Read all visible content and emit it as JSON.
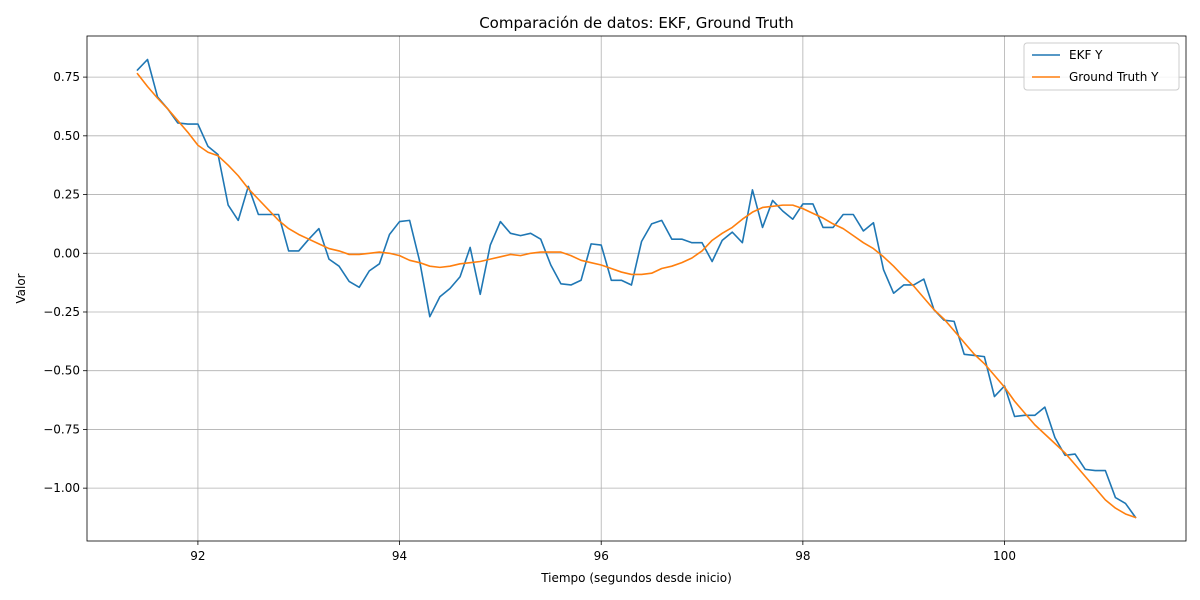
{
  "chart_data": {
    "type": "line",
    "title": "Comparación de datos: EKF, Ground Truth",
    "xlabel": "Tiempo (segundos desde inicio)",
    "ylabel": "Valor",
    "xlim": [
      90.9,
      101.8
    ],
    "ylim": [
      -1.225,
      0.925
    ],
    "xticks": [
      92,
      94,
      96,
      98,
      100
    ],
    "yticks": [
      -1.0,
      -0.75,
      -0.5,
      -0.25,
      0.0,
      0.25,
      0.5,
      0.75
    ],
    "ytick_labels": [
      "−1.00",
      "−0.75",
      "−0.50",
      "−0.25",
      "0.00",
      "0.25",
      "0.50",
      "0.75"
    ],
    "grid": true,
    "legend_position": "top-right",
    "series": [
      {
        "name": "EKF Y",
        "color": "#1f77b4",
        "x": [
          91.4,
          91.5,
          91.6,
          91.7,
          91.8,
          91.9,
          92.0,
          92.1,
          92.2,
          92.3,
          92.4,
          92.5,
          92.6,
          92.7,
          92.8,
          92.9,
          93.0,
          93.1,
          93.2,
          93.3,
          93.4,
          93.5,
          93.6,
          93.7,
          93.8,
          93.9,
          94.0,
          94.1,
          94.2,
          94.3,
          94.4,
          94.5,
          94.6,
          94.7,
          94.8,
          94.9,
          95.0,
          95.1,
          95.2,
          95.3,
          95.4,
          95.5,
          95.6,
          95.7,
          95.8,
          95.9,
          96.0,
          96.1,
          96.2,
          96.3,
          96.4,
          96.5,
          96.6,
          96.7,
          96.8,
          96.9,
          97.0,
          97.1,
          97.2,
          97.3,
          97.4,
          97.5,
          97.6,
          97.7,
          97.8,
          97.9,
          98.0,
          98.1,
          98.2,
          98.3,
          98.4,
          98.5,
          98.6,
          98.7,
          98.8,
          98.9,
          99.0,
          99.1,
          99.2,
          99.3,
          99.4,
          99.5,
          99.6,
          99.7,
          99.8,
          99.9,
          100.0,
          100.1,
          100.2,
          100.3,
          100.4,
          100.5,
          100.6,
          100.7,
          100.8,
          100.9,
          101.0,
          101.1,
          101.2,
          101.3
        ],
        "y": [
          0.78,
          0.825,
          0.665,
          0.615,
          0.555,
          0.55,
          0.55,
          0.455,
          0.42,
          0.205,
          0.14,
          0.285,
          0.165,
          0.165,
          0.165,
          0.01,
          0.01,
          0.06,
          0.105,
          -0.025,
          -0.055,
          -0.12,
          -0.145,
          -0.075,
          -0.045,
          0.08,
          0.135,
          0.14,
          -0.035,
          -0.27,
          -0.185,
          -0.15,
          -0.1,
          0.025,
          -0.175,
          0.035,
          0.135,
          0.085,
          0.075,
          0.085,
          0.06,
          -0.05,
          -0.13,
          -0.135,
          -0.115,
          0.04,
          0.035,
          -0.115,
          -0.115,
          -0.135,
          0.05,
          0.125,
          0.14,
          0.06,
          0.06,
          0.045,
          0.045,
          -0.035,
          0.055,
          0.09,
          0.045,
          0.27,
          0.11,
          0.225,
          0.18,
          0.145,
          0.21,
          0.21,
          0.11,
          0.11,
          0.165,
          0.165,
          0.095,
          0.13,
          -0.07,
          -0.17,
          -0.135,
          -0.135,
          -0.11,
          -0.24,
          -0.285,
          -0.29,
          -0.43,
          -0.435,
          -0.44,
          -0.61,
          -0.565,
          -0.695,
          -0.69,
          -0.69,
          -0.655,
          -0.785,
          -0.86,
          -0.855,
          -0.92,
          -0.925,
          -0.925,
          -1.04,
          -1.065,
          -1.125
        ]
      },
      {
        "name": "Ground Truth Y",
        "color": "#ff7f0e",
        "x": [
          91.4,
          91.5,
          91.6,
          91.7,
          91.8,
          91.9,
          92.0,
          92.1,
          92.2,
          92.3,
          92.4,
          92.5,
          92.6,
          92.7,
          92.8,
          92.9,
          93.0,
          93.1,
          93.2,
          93.3,
          93.4,
          93.5,
          93.6,
          93.7,
          93.8,
          93.9,
          94.0,
          94.1,
          94.2,
          94.3,
          94.4,
          94.5,
          94.6,
          94.7,
          94.8,
          94.9,
          95.0,
          95.1,
          95.2,
          95.3,
          95.4,
          95.5,
          95.6,
          95.7,
          95.8,
          95.9,
          96.0,
          96.1,
          96.2,
          96.3,
          96.4,
          96.5,
          96.6,
          96.7,
          96.8,
          96.9,
          97.0,
          97.1,
          97.2,
          97.3,
          97.4,
          97.5,
          97.6,
          97.7,
          97.8,
          97.9,
          98.0,
          98.1,
          98.2,
          98.3,
          98.4,
          98.5,
          98.6,
          98.7,
          98.8,
          98.9,
          99.0,
          99.1,
          99.2,
          99.3,
          99.4,
          99.5,
          99.6,
          99.7,
          99.8,
          99.9,
          100.0,
          100.1,
          100.2,
          100.3,
          100.4,
          100.5,
          100.6,
          100.7,
          100.8,
          100.9,
          101.0,
          101.1,
          101.2,
          101.3
        ],
        "y": [
          0.765,
          0.71,
          0.66,
          0.615,
          0.565,
          0.515,
          0.46,
          0.43,
          0.415,
          0.375,
          0.33,
          0.275,
          0.23,
          0.185,
          0.14,
          0.105,
          0.08,
          0.06,
          0.04,
          0.02,
          0.01,
          -0.005,
          -0.005,
          0.0,
          0.005,
          0.0,
          -0.01,
          -0.03,
          -0.04,
          -0.055,
          -0.06,
          -0.055,
          -0.045,
          -0.04,
          -0.035,
          -0.025,
          -0.015,
          -0.005,
          -0.01,
          0.0,
          0.005,
          0.005,
          0.005,
          -0.01,
          -0.03,
          -0.04,
          -0.05,
          -0.065,
          -0.08,
          -0.09,
          -0.09,
          -0.085,
          -0.065,
          -0.055,
          -0.04,
          -0.02,
          0.01,
          0.055,
          0.085,
          0.11,
          0.145,
          0.175,
          0.195,
          0.2,
          0.205,
          0.205,
          0.19,
          0.17,
          0.15,
          0.125,
          0.105,
          0.075,
          0.045,
          0.02,
          -0.015,
          -0.055,
          -0.1,
          -0.14,
          -0.19,
          -0.24,
          -0.28,
          -0.33,
          -0.38,
          -0.43,
          -0.47,
          -0.52,
          -0.57,
          -0.63,
          -0.68,
          -0.73,
          -0.77,
          -0.81,
          -0.85,
          -0.9,
          -0.95,
          -1.0,
          -1.05,
          -1.085,
          -1.11,
          -1.125
        ]
      }
    ]
  }
}
